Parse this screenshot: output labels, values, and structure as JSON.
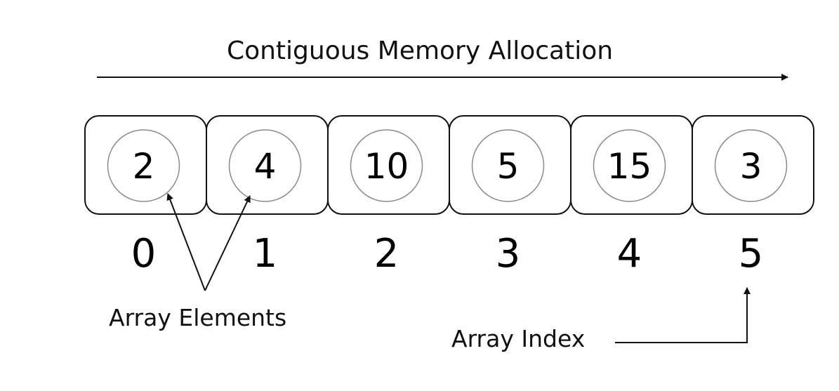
{
  "diagram": {
    "title": "Contiguous Memory Allocation",
    "elements": [
      "2",
      "4",
      "10",
      "5",
      "15",
      "3"
    ],
    "indices": [
      "0",
      "1",
      "2",
      "3",
      "4",
      "5"
    ],
    "elements_label": "Array Elements",
    "index_label": "Array Index"
  }
}
